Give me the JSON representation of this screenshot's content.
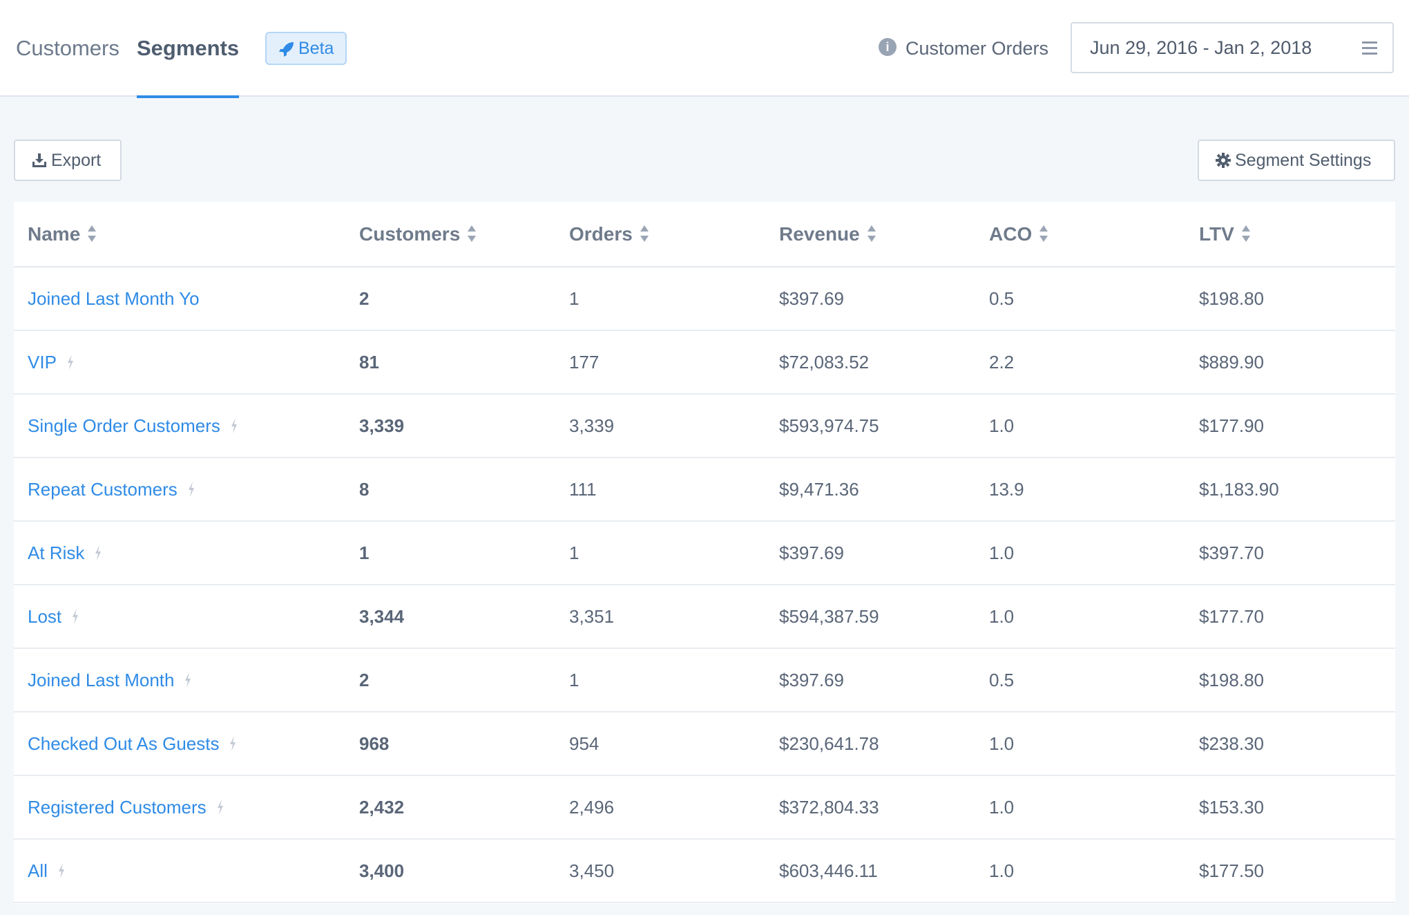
{
  "tabs": [
    {
      "label": "Customers"
    },
    {
      "label": "Segments"
    }
  ],
  "beta_badge": "Beta",
  "info_label": "Customer Orders",
  "date_range": "Jun 29, 2016 - Jan 2, 2018",
  "toolbar": {
    "export_label": "Export",
    "settings_label": "Segment Settings"
  },
  "table": {
    "columns": [
      "Name",
      "Customers",
      "Orders",
      "Revenue",
      "ACO",
      "LTV"
    ],
    "rows": [
      {
        "name": "Joined Last Month Yo",
        "bolt": false,
        "customers": "2",
        "orders": "1",
        "revenue": "$397.69",
        "aco": "0.5",
        "ltv": "$198.80"
      },
      {
        "name": "VIP",
        "bolt": true,
        "customers": "81",
        "orders": "177",
        "revenue": "$72,083.52",
        "aco": "2.2",
        "ltv": "$889.90"
      },
      {
        "name": "Single Order Customers",
        "bolt": true,
        "customers": "3,339",
        "orders": "3,339",
        "revenue": "$593,974.75",
        "aco": "1.0",
        "ltv": "$177.90"
      },
      {
        "name": "Repeat Customers",
        "bolt": true,
        "customers": "8",
        "orders": "111",
        "revenue": "$9,471.36",
        "aco": "13.9",
        "ltv": "$1,183.90"
      },
      {
        "name": "At Risk",
        "bolt": true,
        "customers": "1",
        "orders": "1",
        "revenue": "$397.69",
        "aco": "1.0",
        "ltv": "$397.70"
      },
      {
        "name": "Lost",
        "bolt": true,
        "customers": "3,344",
        "orders": "3,351",
        "revenue": "$594,387.59",
        "aco": "1.0",
        "ltv": "$177.70"
      },
      {
        "name": "Joined Last Month",
        "bolt": true,
        "customers": "2",
        "orders": "1",
        "revenue": "$397.69",
        "aco": "0.5",
        "ltv": "$198.80"
      },
      {
        "name": "Checked Out As Guests",
        "bolt": true,
        "customers": "968",
        "orders": "954",
        "revenue": "$230,641.78",
        "aco": "1.0",
        "ltv": "$238.30"
      },
      {
        "name": "Registered Customers",
        "bolt": true,
        "customers": "2,432",
        "orders": "2,496",
        "revenue": "$372,804.33",
        "aco": "1.0",
        "ltv": "$153.30"
      },
      {
        "name": "All",
        "bolt": true,
        "customers": "3,400",
        "orders": "3,450",
        "revenue": "$603,446.11",
        "aco": "1.0",
        "ltv": "$177.50"
      }
    ]
  },
  "colors": {
    "accent": "#2f8be6",
    "text": "#5a6678",
    "header_text": "#6f7b8b",
    "background": "#f4f7fa"
  },
  "icons": {
    "beta": "rocket-icon",
    "info": "info-icon",
    "date_menu": "hamburger-icon",
    "export": "download-icon",
    "settings": "gear-icon",
    "sort": "sort-icon",
    "segment": "bolt-icon"
  }
}
